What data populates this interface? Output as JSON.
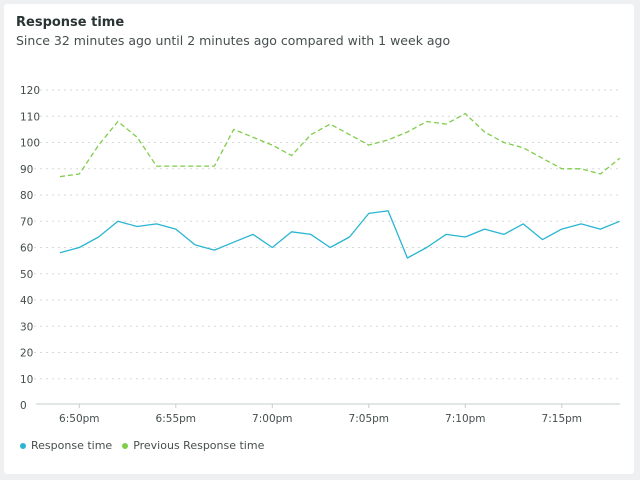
{
  "widget": {
    "title": "Response time",
    "subtitle": "Since 32 minutes ago until 2 minutes ago compared with 1 week ago"
  },
  "colors": {
    "current": "#29b5d1",
    "previous": "#7fcd4a",
    "grid": "#d5d9da",
    "axis": "#c7cccd"
  },
  "chart_data": {
    "type": "line",
    "ylim": [
      0,
      120
    ],
    "y_ticks": [
      "0",
      "10",
      "20",
      "30",
      "40",
      "50",
      "60",
      "70",
      "80",
      "90",
      "100",
      "110",
      "120"
    ],
    "x_ticks": [
      {
        "label": "6:50pm",
        "x": 1
      },
      {
        "label": "6:55pm",
        "x": 6
      },
      {
        "label": "7:00pm",
        "x": 11
      },
      {
        "label": "7:05pm",
        "x": 16
      },
      {
        "label": "7:10pm",
        "x": 21
      },
      {
        "label": "7:15pm",
        "x": 26
      }
    ],
    "x": [
      0,
      1,
      2,
      3,
      4,
      5,
      6,
      7,
      8,
      9,
      10,
      11,
      12,
      13,
      14,
      15,
      16,
      17,
      18,
      19,
      20,
      21,
      22,
      23,
      24,
      25,
      26,
      27,
      28,
      29
    ],
    "series": [
      {
        "name": "Response time",
        "style": "solid",
        "values": [
          58,
          60,
          64,
          70,
          68,
          69,
          67,
          61,
          59,
          62,
          65,
          60,
          66,
          65,
          60,
          64,
          73,
          74,
          56,
          60,
          65,
          64,
          67,
          65,
          69,
          63,
          67,
          69,
          67,
          70
        ]
      },
      {
        "name": "Previous Response time",
        "style": "dashed",
        "values": [
          87,
          88,
          99,
          108,
          102,
          91,
          91,
          91,
          91,
          105,
          102,
          99,
          95,
          103,
          107,
          103,
          99,
          101,
          104,
          108,
          107,
          111,
          104,
          100,
          98,
          94,
          90,
          90,
          88,
          94
        ]
      }
    ],
    "legend_position": "bottom-left",
    "grid": true
  }
}
